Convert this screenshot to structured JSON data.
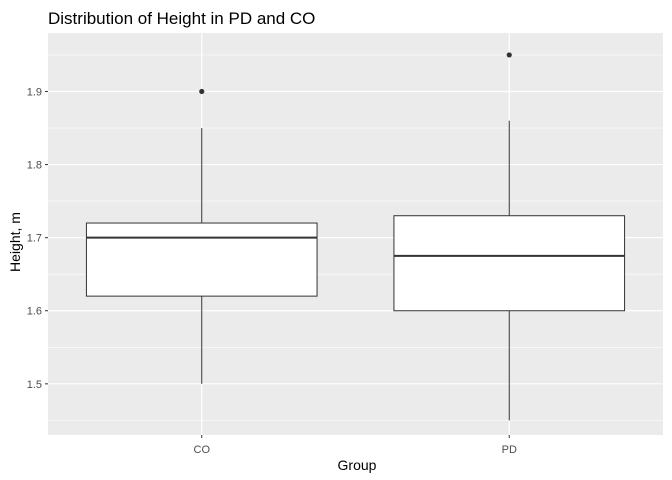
{
  "chart_data": {
    "type": "box",
    "title": "Distribution of Height in PD and CO",
    "xlabel": "Group",
    "ylabel": "Height, m",
    "ylim": [
      1.43,
      1.98
    ],
    "yticks": [
      1.5,
      1.6,
      1.7,
      1.8,
      1.9
    ],
    "ytick_labels": [
      "1.5",
      "1.6",
      "1.7",
      "1.8",
      "1.9"
    ],
    "categories": [
      "CO",
      "PD"
    ],
    "boxes": [
      {
        "category": "CO",
        "lower_whisker": 1.5,
        "q1": 1.62,
        "median": 1.7,
        "q3": 1.72,
        "upper_whisker": 1.85,
        "outliers": [
          1.9
        ]
      },
      {
        "category": "PD",
        "lower_whisker": 1.45,
        "q1": 1.6,
        "median": 1.675,
        "q3": 1.73,
        "upper_whisker": 1.86,
        "outliers": [
          1.95
        ]
      }
    ],
    "grid": true,
    "colors": {
      "panel_background": "#ebebeb",
      "grid_major": "#ffffff",
      "box_fill": "#ffffff",
      "box_line": "#333333",
      "outlier": "#333333"
    }
  }
}
